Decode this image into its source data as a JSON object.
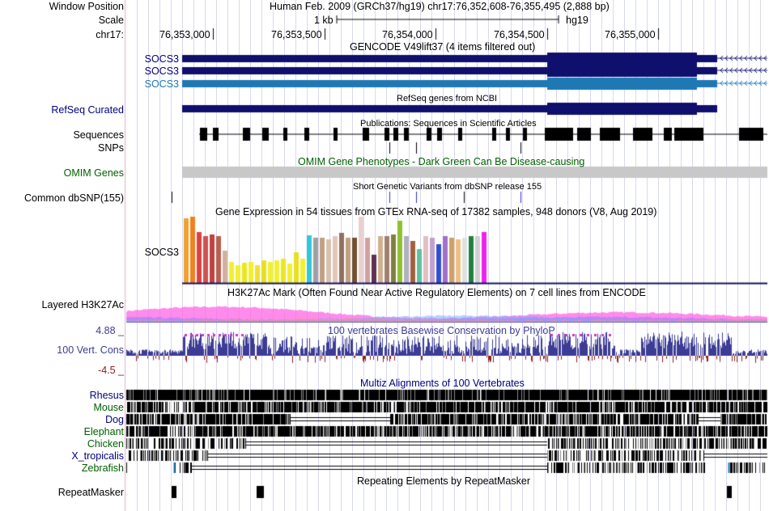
{
  "header": {
    "window_position_label": "Window Position",
    "window_position_value": "Human Feb. 2009 (GRCh37/hg19)   chr17:76,352,608-76,355,495 (2,888 bp)",
    "scale_label": "Scale",
    "scale_value": "1 kb",
    "assembly": "hg19",
    "chrom_label": "chr17:",
    "ticks": [
      "76,353,000",
      "76,353,500",
      "76,354,000",
      "76,354,500",
      "76,355,000"
    ]
  },
  "tracks": {
    "gencode": {
      "title": "GENCODE V49lift37 (4 items filtered out)",
      "genes": [
        "SOCS3",
        "SOCS3",
        "SOCS3"
      ]
    },
    "refseq": {
      "label": "RefSeq Curated",
      "title": "RefSeq genes from NCBI"
    },
    "publications": {
      "label": "Sequences",
      "title": "Publications: Sequences in Scientific Articles"
    },
    "snps": {
      "label": "SNPs"
    },
    "omim": {
      "label": "OMIM Genes",
      "title": "OMIM Gene Phenotypes - Dark Green Can Be Disease-causing"
    },
    "dbsnp": {
      "label": "Common dbSNP(155)",
      "title": "Short Genetic Variants from dbSNP release 155"
    },
    "gtex": {
      "title": "Gene Expression in 54 tissues from GTEx RNA-seq of 17382 samples, 948 donors (V8, Aug 2019)",
      "gene": "SOCS3"
    },
    "h3k27ac": {
      "label": "Layered H3K27Ac",
      "title": "H3K27Ac Mark (Often Found Near Active Regulatory Elements) on 7 cell lines from ENCODE"
    },
    "phylop": {
      "label": "100 Vert. Cons",
      "max": "4.88 _",
      "min": "-4.5 _",
      "title": "100 vertebrates Basewise Conservation by PhyloP"
    },
    "multiz": {
      "title": "Multiz Alignments of 100 Vertebrates",
      "species": [
        "Rhesus",
        "Mouse",
        "Dog",
        "Elephant",
        "Chicken",
        "X_tropicalis",
        "Zebrafish"
      ]
    },
    "repeatmasker": {
      "label": "RepeatMasker",
      "title": "Repeating Elements by RepeatMasker"
    }
  },
  "colors": {
    "gene_navy": "#0f0f6e",
    "gene_light": "#1e78b4",
    "label_navy": "#000080",
    "label_green": "#006000",
    "grey_bar": "#c8c8c8",
    "phylop": "#3c3c96"
  }
}
